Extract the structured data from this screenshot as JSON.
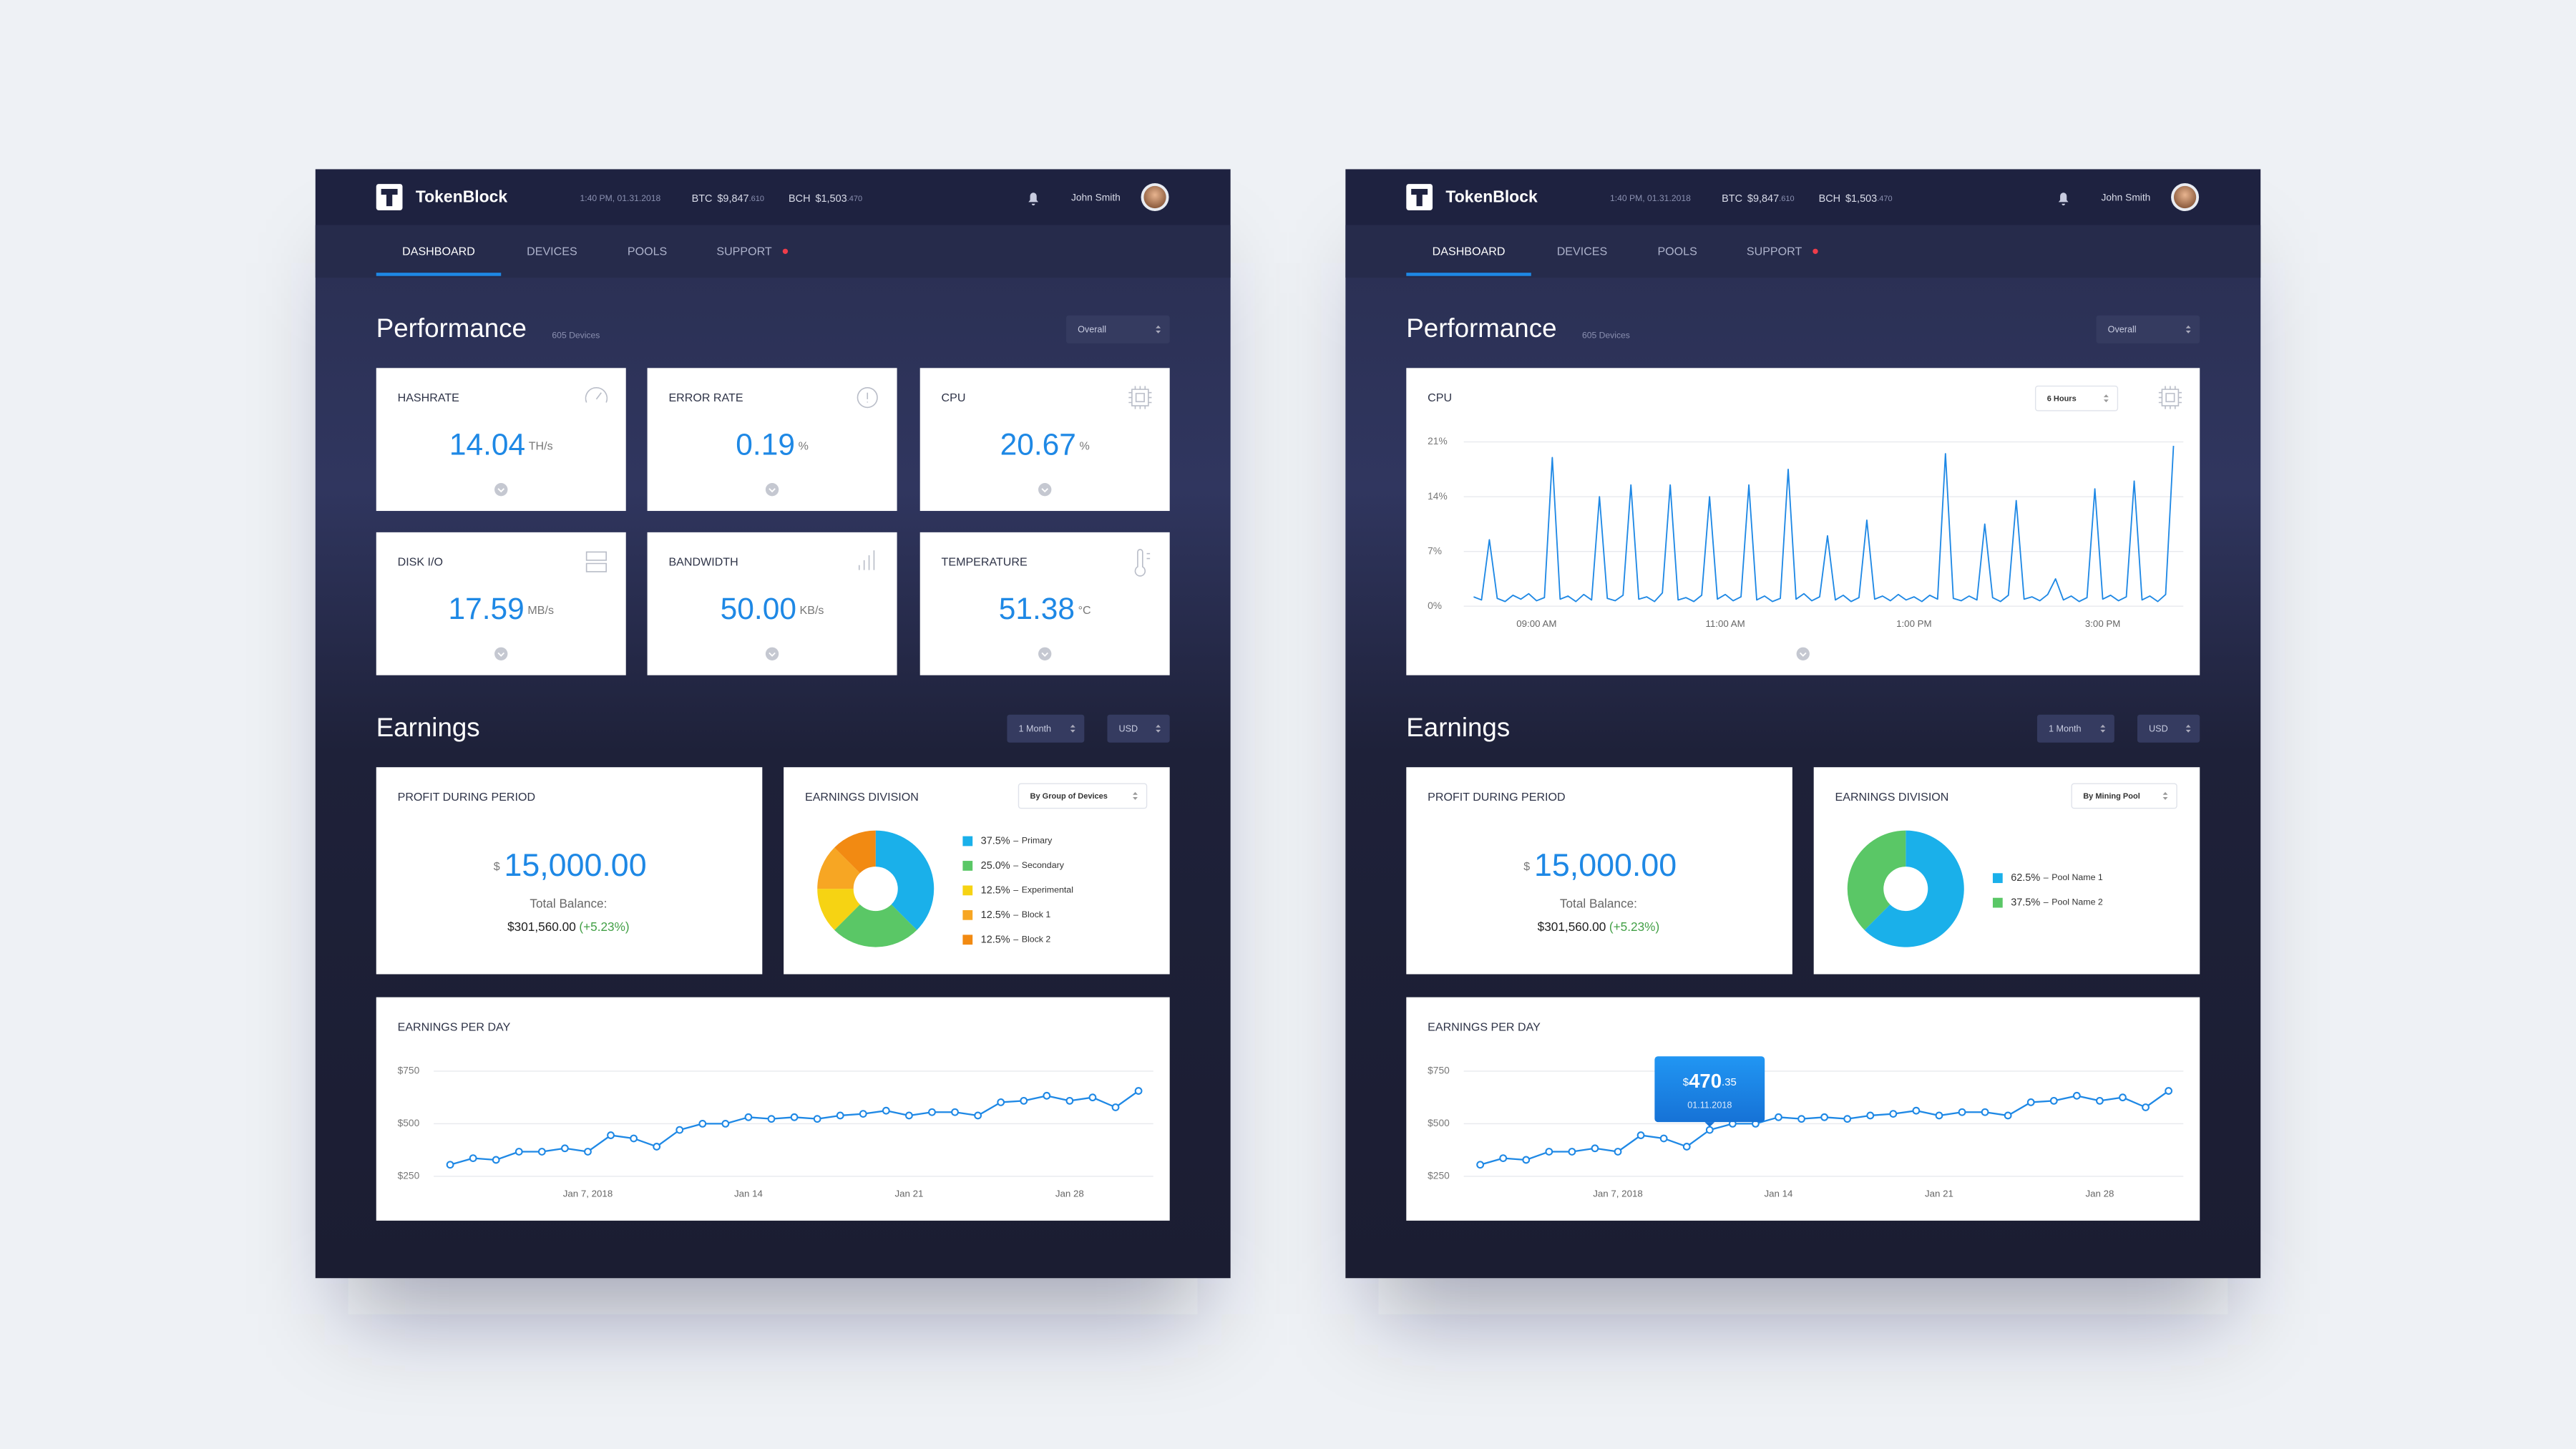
{
  "app": {
    "brand": "TokenBlock",
    "datetime": "1:40 PM, 01.31.2018",
    "tickers": [
      {
        "symbol": "BTC",
        "price": "$9,847",
        "fraction": ".610"
      },
      {
        "symbol": "BCH",
        "price": "$1,503",
        "fraction": ".470"
      }
    ],
    "user": "John Smith",
    "nav": [
      "DASHBOARD",
      "DEVICES",
      "POOLS",
      "SUPPORT"
    ]
  },
  "performance": {
    "title": "Performance",
    "subtitle": "605 Devices",
    "filter": "Overall"
  },
  "earnings": {
    "title": "Earnings",
    "period": "1 Month",
    "currency": "USD"
  },
  "profit": {
    "title": "PROFIT DURING PERIOD",
    "currency_symbol": "$",
    "amount": "15,000.00",
    "balance_label": "Total Balance:",
    "balance": "$301,560.00",
    "change": "(+5.23%)"
  },
  "earnings_per_day": {
    "type": "line",
    "title": "EARNINGS PER DAY",
    "color": "#1e88e5",
    "x": [
      "2018-01-01",
      "2018-01-02",
      "2018-01-03",
      "2018-01-04",
      "2018-01-05",
      "2018-01-06",
      "2018-01-07",
      "2018-01-08",
      "2018-01-09",
      "2018-01-10",
      "2018-01-11",
      "2018-01-12",
      "2018-01-13",
      "2018-01-14",
      "2018-01-15",
      "2018-01-16",
      "2018-01-17",
      "2018-01-18",
      "2018-01-19",
      "2018-01-20",
      "2018-01-21",
      "2018-01-22",
      "2018-01-23",
      "2018-01-24",
      "2018-01-25",
      "2018-01-26",
      "2018-01-27",
      "2018-01-28",
      "2018-01-29",
      "2018-01-30",
      "2018-01-31"
    ],
    "values": [
      305,
      336,
      328,
      367,
      367,
      383,
      367,
      445,
      430,
      391,
      470.35,
      500,
      500,
      531,
      523,
      531,
      523,
      539,
      547,
      562,
      539,
      555,
      555,
      539,
      602,
      609,
      633,
      609,
      625,
      578,
      656
    ],
    "xlim": [
      "2018-01-01",
      "2018-01-31"
    ],
    "xticks": [
      {
        "value": "2018-01-07",
        "label": "Jan 7, 2018"
      },
      {
        "value": "2018-01-14",
        "label": "Jan 14"
      },
      {
        "value": "2018-01-21",
        "label": "Jan 21"
      },
      {
        "value": "2018-01-28",
        "label": "Jan 28"
      }
    ],
    "ylim": [
      250,
      750
    ],
    "yticks": [
      {
        "value": 250,
        "label": "$250"
      },
      {
        "value": 500,
        "label": "$500"
      },
      {
        "value": 750,
        "label": "$750"
      }
    ],
    "grid": true
  },
  "screens": [
    {
      "metrics": [
        {
          "label": "HASHRATE",
          "value": "14.04",
          "unit": "TH/s"
        },
        {
          "label": "ERROR RATE",
          "value": "0.19",
          "unit": "%"
        },
        {
          "label": "CPU",
          "value": "20.67",
          "unit": "%"
        },
        {
          "label": "DISK I/O",
          "value": "17.59",
          "unit": "MB/s"
        },
        {
          "label": "BANDWIDTH",
          "value": "50.00",
          "unit": "KB/s"
        },
        {
          "label": "TEMPERATURE",
          "value": "51.38",
          "unit": "°C"
        }
      ],
      "division": {
        "type": "pie",
        "title": "EARNINGS DIVISION",
        "filter": "By Group of Devices",
        "legend_separator": "–",
        "categories": [
          "Primary",
          "Secondary",
          "Experimental",
          "Block 1",
          "Block 2"
        ],
        "values": [
          37.5,
          25.0,
          12.5,
          12.5,
          12.5
        ],
        "value_labels": [
          "37.5%",
          "25.0%",
          "12.5%",
          "12.5%",
          "12.5%"
        ],
        "colors": [
          "#1ab0ea",
          "#5ac766",
          "#f6d313",
          "#f7a623",
          "#f28a12"
        ]
      }
    },
    {
      "cpu": {
        "type": "line",
        "title": "CPU",
        "filter": "6 Hours",
        "color": "#1e88e5",
        "x": [
          "08:20",
          "08:25",
          "08:30",
          "08:35",
          "08:40",
          "08:45",
          "08:50",
          "08:55",
          "09:00",
          "09:05",
          "09:10",
          "09:15",
          "09:20",
          "09:25",
          "09:30",
          "09:35",
          "09:40",
          "09:45",
          "09:50",
          "09:55",
          "10:00",
          "10:05",
          "10:10",
          "10:15",
          "10:20",
          "10:25",
          "10:30",
          "10:35",
          "10:40",
          "10:45",
          "10:50",
          "10:55",
          "11:00",
          "11:05",
          "11:10",
          "11:15",
          "11:20",
          "11:25",
          "11:30",
          "11:35",
          "11:40",
          "11:45",
          "11:50",
          "11:55",
          "12:00",
          "12:05",
          "12:10",
          "12:15",
          "12:20",
          "12:25",
          "12:30",
          "12:35",
          "12:40",
          "12:45",
          "12:50",
          "12:55",
          "13:00",
          "13:05",
          "13:10",
          "13:15",
          "13:20",
          "13:25",
          "13:30",
          "13:35",
          "13:40",
          "13:45",
          "13:50",
          "13:55",
          "14:00",
          "14:05",
          "14:10",
          "14:15",
          "14:20",
          "14:25",
          "14:30",
          "14:35",
          "14:40",
          "14:45",
          "14:50",
          "14:55",
          "15:00",
          "15:05",
          "15:10",
          "15:15",
          "15:20",
          "15:25",
          "15:30",
          "15:35",
          "15:40",
          "15:45"
        ],
        "values": [
          1.2,
          0.8,
          8.5,
          1.0,
          0.6,
          1.4,
          0.9,
          1.6,
          0.7,
          1.1,
          19,
          0.9,
          1.3,
          0.6,
          1.5,
          0.8,
          14,
          1.0,
          0.7,
          1.4,
          15.5,
          0.9,
          1.2,
          0.6,
          1.7,
          15.5,
          0.8,
          1.1,
          0.6,
          1.4,
          14,
          0.9,
          1.5,
          0.7,
          1.2,
          15.5,
          0.8,
          1.3,
          0.6,
          1.0,
          17.5,
          0.9,
          1.6,
          0.7,
          1.2,
          9,
          0.8,
          1.4,
          0.6,
          1.1,
          11,
          0.9,
          1.3,
          0.7,
          1.5,
          0.8,
          1.2,
          0.6,
          1.4,
          0.9,
          19.5,
          1.0,
          0.7,
          1.3,
          0.8,
          10.5,
          1.1,
          0.6,
          1.4,
          13.5,
          0.9,
          1.2,
          0.7,
          1.5,
          3.5,
          0.8,
          1.3,
          0.6,
          1.1,
          15,
          0.9,
          1.4,
          0.7,
          1.2,
          16,
          0.8,
          1.3,
          0.6,
          1.5,
          20.5
        ],
        "xlim": [
          "08:20",
          "15:45"
        ],
        "xticks": [
          {
            "value": "09:00",
            "label": "09:00 AM"
          },
          {
            "value": "11:00",
            "label": "11:00 AM"
          },
          {
            "value": "13:00",
            "label": "1:00 PM"
          },
          {
            "value": "15:00",
            "label": "3:00 PM"
          }
        ],
        "ylim": [
          0,
          21
        ],
        "yticks": [
          {
            "value": 0,
            "label": "0%"
          },
          {
            "value": 7,
            "label": "7%"
          },
          {
            "value": 14,
            "label": "14%"
          },
          {
            "value": 21,
            "label": "21%"
          }
        ],
        "grid": true
      },
      "division": {
        "type": "pie",
        "title": "EARNINGS DIVISION",
        "filter": "By Mining Pool",
        "legend_separator": "–",
        "categories": [
          "Pool Name 1",
          "Pool Name 2"
        ],
        "values": [
          62.5,
          37.5
        ],
        "value_labels": [
          "62.5%",
          "37.5%"
        ],
        "colors": [
          "#1ab0ea",
          "#5ac766"
        ]
      },
      "tooltip": {
        "currency": "$",
        "whole": "470",
        "cents": ".35",
        "date": "01.11.2018"
      }
    }
  ]
}
